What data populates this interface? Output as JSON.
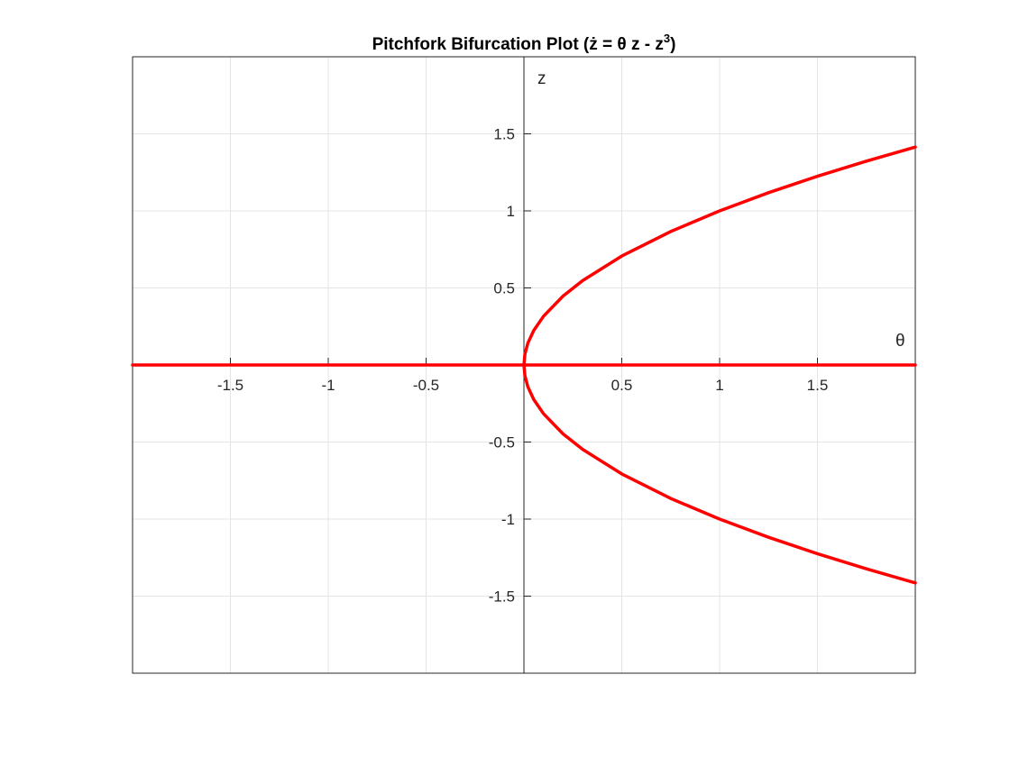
{
  "chart_data": {
    "type": "line",
    "title": "Pitchfork Bifurcation Plot (ż = θ z - z",
    "title_superscript": "3",
    "title_close": ")",
    "xlabel": "θ",
    "ylabel": "z",
    "xlim": [
      -2,
      2
    ],
    "ylim": [
      -2,
      2
    ],
    "grid": true,
    "axis_location": "origin",
    "x_ticks": [
      -1.5,
      -1,
      -0.5,
      0.5,
      1,
      1.5
    ],
    "x_tick_labels": [
      "-1.5",
      "-1",
      "-0.5",
      "0.5",
      "1",
      "1.5"
    ],
    "y_ticks": [
      1.5,
      1,
      0.5,
      -0.5,
      -1,
      -1.5
    ],
    "y_tick_labels": [
      "1.5",
      "1",
      "0.5",
      "-0.5",
      "-1",
      "-1.5"
    ],
    "series": [
      {
        "color": "#ff0000",
        "x": [
          -2,
          0,
          2
        ],
        "y": [
          0,
          0,
          0
        ]
      },
      {
        "color": "#ff0000",
        "x": [
          0,
          0.005,
          0.02,
          0.05,
          0.1,
          0.2,
          0.3,
          0.5,
          0.75,
          1,
          1.25,
          1.5,
          1.75,
          2
        ],
        "y": [
          0,
          0.0707,
          0.1414,
          0.2236,
          0.3162,
          0.4472,
          0.5477,
          0.7071,
          0.866,
          1,
          1.118,
          1.2247,
          1.3229,
          1.4142
        ]
      },
      {
        "color": "#ff0000",
        "x": [
          0,
          0.005,
          0.02,
          0.05,
          0.1,
          0.2,
          0.3,
          0.5,
          0.75,
          1,
          1.25,
          1.5,
          1.75,
          2
        ],
        "y": [
          0,
          -0.0707,
          -0.1414,
          -0.2236,
          -0.3162,
          -0.4472,
          -0.5477,
          -0.7071,
          -0.866,
          -1,
          -1.118,
          -1.2247,
          -1.3229,
          -1.4142
        ]
      }
    ]
  }
}
